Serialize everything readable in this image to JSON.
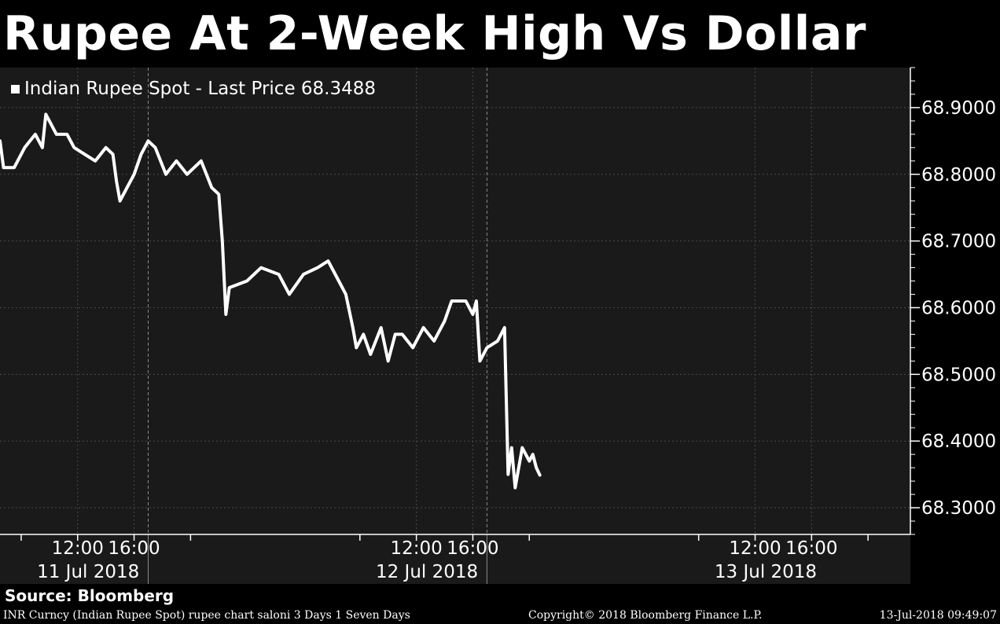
{
  "title": "Rupee At 2-Week High Vs Dollar",
  "legend": {
    "label": "Indian Rupee Spot - Last Price 68.3488"
  },
  "source": "Source: Bloomberg",
  "footer": {
    "left": "INR Curncy (Indian Rupee Spot) rupee chart saloni 3 Days 1 Seven Days",
    "center": "Copyright© 2018 Bloomberg Finance L.P.",
    "right": "13-Jul-2018 09:49:07"
  },
  "colors": {
    "background": "#000000",
    "plot": "#1a1a1a",
    "line": "#ffffff",
    "grid": "#4a4a4a"
  },
  "chart_data": {
    "type": "line",
    "title": "Rupee At 2-Week High Vs Dollar",
    "xlabel": "",
    "ylabel": "",
    "ylim": [
      68.26,
      68.96
    ],
    "y_ticks": [
      68.3,
      68.4,
      68.5,
      68.6,
      68.7,
      68.8,
      68.9
    ],
    "y_tick_labels": [
      "68.3000",
      "68.4000",
      "68.5000",
      "68.6000",
      "68.7000",
      "68.8000",
      "68.9000"
    ],
    "xlim": [
      "2018-07-11 06:30",
      "2018-07-13 23:00"
    ],
    "x_ticks": [
      {
        "x": "2018-07-11 12:00",
        "label": "12:00"
      },
      {
        "x": "2018-07-11 16:00",
        "label": "16:00"
      },
      {
        "x": "2018-07-12 12:00",
        "label": "12:00"
      },
      {
        "x": "2018-07-12 16:00",
        "label": "16:00"
      },
      {
        "x": "2018-07-13 12:00",
        "label": "12:00"
      },
      {
        "x": "2018-07-13 16:00",
        "label": "16:00"
      }
    ],
    "date_labels": [
      {
        "x": "2018-07-11 12:45",
        "label": "11 Jul 2018"
      },
      {
        "x": "2018-07-12 12:45",
        "label": "12 Jul 2018"
      },
      {
        "x": "2018-07-13 12:45",
        "label": "13 Jul 2018"
      }
    ],
    "day_separators": [
      "2018-07-11 17:00",
      "2018-07-12 17:00"
    ],
    "series": [
      {
        "name": "Indian Rupee Spot - Last Price",
        "points": [
          {
            "x": "2018-07-11 06:30",
            "y": 68.85
          },
          {
            "x": "2018-07-11 06:45",
            "y": 68.81
          },
          {
            "x": "2018-07-11 07:30",
            "y": 68.81
          },
          {
            "x": "2018-07-11 08:15",
            "y": 68.84
          },
          {
            "x": "2018-07-11 09:00",
            "y": 68.86
          },
          {
            "x": "2018-07-11 09:30",
            "y": 68.84
          },
          {
            "x": "2018-07-11 09:45",
            "y": 68.89
          },
          {
            "x": "2018-07-11 10:30",
            "y": 68.86
          },
          {
            "x": "2018-07-11 11:15",
            "y": 68.86
          },
          {
            "x": "2018-07-11 11:45",
            "y": 68.84
          },
          {
            "x": "2018-07-11 12:30",
            "y": 68.83
          },
          {
            "x": "2018-07-11 13:15",
            "y": 68.82
          },
          {
            "x": "2018-07-11 14:00",
            "y": 68.84
          },
          {
            "x": "2018-07-11 14:30",
            "y": 68.83
          },
          {
            "x": "2018-07-11 14:45",
            "y": 68.79
          },
          {
            "x": "2018-07-11 15:00",
            "y": 68.76
          },
          {
            "x": "2018-07-11 15:30",
            "y": 68.78
          },
          {
            "x": "2018-07-11 16:00",
            "y": 68.8
          },
          {
            "x": "2018-07-11 16:30",
            "y": 68.83
          },
          {
            "x": "2018-07-11 17:00",
            "y": 68.85
          },
          {
            "x": "2018-07-11 17:30",
            "y": 68.84
          },
          {
            "x": "2018-07-11 18:15",
            "y": 68.8
          },
          {
            "x": "2018-07-11 19:00",
            "y": 68.82
          },
          {
            "x": "2018-07-11 19:45",
            "y": 68.8
          },
          {
            "x": "2018-07-11 20:45",
            "y": 68.82
          },
          {
            "x": "2018-07-11 21:30",
            "y": 68.78
          },
          {
            "x": "2018-07-11 22:00",
            "y": 68.77
          },
          {
            "x": "2018-07-11 22:15",
            "y": 68.7
          },
          {
            "x": "2018-07-11 22:30",
            "y": 68.59
          },
          {
            "x": "2018-07-11 22:45",
            "y": 68.63
          },
          {
            "x": "2018-07-12 00:00",
            "y": 68.64
          },
          {
            "x": "2018-07-12 01:00",
            "y": 68.66
          },
          {
            "x": "2018-07-12 02:15",
            "y": 68.65
          },
          {
            "x": "2018-07-12 03:00",
            "y": 68.62
          },
          {
            "x": "2018-07-12 04:00",
            "y": 68.65
          },
          {
            "x": "2018-07-12 05:00",
            "y": 68.66
          },
          {
            "x": "2018-07-12 05:45",
            "y": 68.67
          },
          {
            "x": "2018-07-12 06:30",
            "y": 68.64
          },
          {
            "x": "2018-07-12 07:00",
            "y": 68.62
          },
          {
            "x": "2018-07-12 07:30",
            "y": 68.57
          },
          {
            "x": "2018-07-12 07:45",
            "y": 68.54
          },
          {
            "x": "2018-07-12 08:15",
            "y": 68.56
          },
          {
            "x": "2018-07-12 08:45",
            "y": 68.53
          },
          {
            "x": "2018-07-12 09:30",
            "y": 68.57
          },
          {
            "x": "2018-07-12 10:00",
            "y": 68.52
          },
          {
            "x": "2018-07-12 10:30",
            "y": 68.56
          },
          {
            "x": "2018-07-12 11:00",
            "y": 68.56
          },
          {
            "x": "2018-07-12 11:45",
            "y": 68.54
          },
          {
            "x": "2018-07-12 12:30",
            "y": 68.57
          },
          {
            "x": "2018-07-12 13:15",
            "y": 68.55
          },
          {
            "x": "2018-07-12 14:00",
            "y": 68.58
          },
          {
            "x": "2018-07-12 14:30",
            "y": 68.61
          },
          {
            "x": "2018-07-12 15:30",
            "y": 68.61
          },
          {
            "x": "2018-07-12 16:00",
            "y": 68.59
          },
          {
            "x": "2018-07-12 16:15",
            "y": 68.61
          },
          {
            "x": "2018-07-12 16:30",
            "y": 68.52
          },
          {
            "x": "2018-07-12 17:00",
            "y": 68.54
          },
          {
            "x": "2018-07-12 17:45",
            "y": 68.55
          },
          {
            "x": "2018-07-12 18:15",
            "y": 68.57
          },
          {
            "x": "2018-07-12 18:30",
            "y": 68.35
          },
          {
            "x": "2018-07-12 18:45",
            "y": 68.39
          },
          {
            "x": "2018-07-12 19:00",
            "y": 68.33
          },
          {
            "x": "2018-07-12 19:30",
            "y": 68.39
          },
          {
            "x": "2018-07-12 20:00",
            "y": 68.37
          },
          {
            "x": "2018-07-12 20:15",
            "y": 68.38
          },
          {
            "x": "2018-07-12 20:30",
            "y": 68.36
          },
          {
            "x": "2018-07-12 20:45",
            "y": 68.3488
          }
        ]
      }
    ],
    "grid": true,
    "legend_position": "top-left"
  }
}
